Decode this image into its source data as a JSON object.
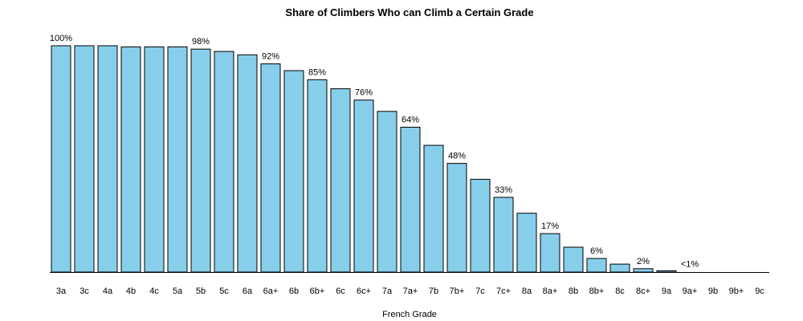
{
  "chart_data": {
    "type": "bar",
    "title": "Share of Climbers Who can Climb a Certain Grade",
    "xlabel": "French Grade",
    "ylabel": "",
    "ylim": [
      0,
      100
    ],
    "grid": false,
    "bar_color": "#87CEEB",
    "categories": [
      "3a",
      "3c",
      "4a",
      "4b",
      "4c",
      "5a",
      "5b",
      "5c",
      "6a",
      "6a+",
      "6b",
      "6b+",
      "6c",
      "6c+",
      "7a",
      "7a+",
      "7b",
      "7b+",
      "7c",
      "7c+",
      "8a",
      "8a+",
      "8b",
      "8b+",
      "8c",
      "8c+",
      "9a",
      "9a+",
      "9b",
      "9b+",
      "9c"
    ],
    "values": [
      100,
      100,
      100,
      99.5,
      99.5,
      99.5,
      98.5,
      97.5,
      96,
      92,
      89,
      85,
      81,
      76,
      71,
      64,
      56,
      48,
      41,
      33,
      26,
      17,
      11,
      6,
      3.5,
      1.5,
      0.6,
      0.1,
      0,
      0,
      0
    ],
    "data_labels": [
      {
        "index": 0,
        "text": "100%"
      },
      {
        "index": 6,
        "text": "98%"
      },
      {
        "index": 9,
        "text": "92%"
      },
      {
        "index": 11,
        "text": "85%"
      },
      {
        "index": 13,
        "text": "76%"
      },
      {
        "index": 15,
        "text": "64%"
      },
      {
        "index": 17,
        "text": "48%"
      },
      {
        "index": 19,
        "text": "33%"
      },
      {
        "index": 21,
        "text": "17%"
      },
      {
        "index": 23,
        "text": "6%"
      },
      {
        "index": 25,
        "text": "2%"
      },
      {
        "index": 27,
        "text": "<1%"
      }
    ]
  }
}
